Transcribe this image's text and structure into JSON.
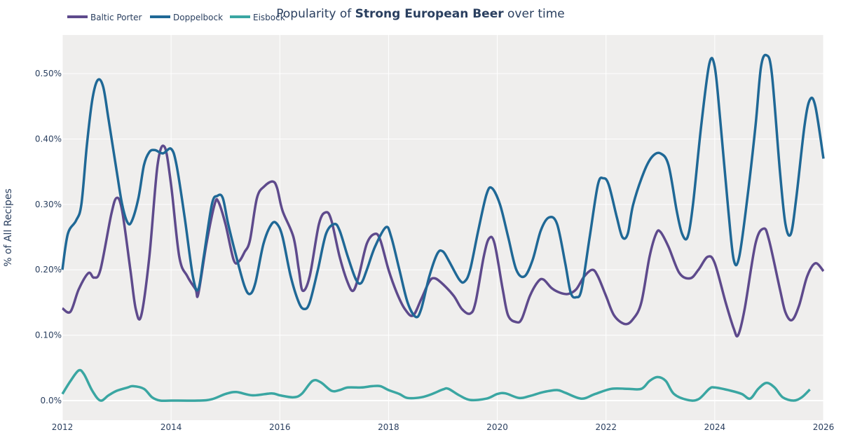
{
  "chart_data": {
    "type": "line",
    "title_prefix": "Popularity of ",
    "title_bold": "Strong European Beer",
    "title_suffix": " over time",
    "xlabel": "",
    "ylabel": "% of All Recipes",
    "xlim": [
      2012,
      2026
    ],
    "ylim": [
      -0.03,
      0.559
    ],
    "x_ticks": [
      "2012",
      "2014",
      "2016",
      "2018",
      "2020",
      "2022",
      "2024",
      "2026"
    ],
    "y_ticks": [
      {
        "v": 0,
        "label": "0.0%"
      },
      {
        "v": 0.1,
        "label": "0.10%"
      },
      {
        "v": 0.2,
        "label": "0.20%"
      },
      {
        "v": 0.3,
        "label": "0.30%"
      },
      {
        "v": 0.4,
        "label": "0.40%"
      },
      {
        "v": 0.5,
        "label": "0.50%"
      }
    ],
    "grid": true,
    "legend_placement": "top-left",
    "plot_background": "#efeeed",
    "series": [
      {
        "name": "Baltic Porter",
        "color": "#5e4a8c",
        "points": [
          [
            2012.0,
            0.141
          ],
          [
            2012.15,
            0.136
          ],
          [
            2012.3,
            0.17
          ],
          [
            2012.48,
            0.195
          ],
          [
            2012.58,
            0.188
          ],
          [
            2012.7,
            0.2
          ],
          [
            2012.9,
            0.285
          ],
          [
            2013.0,
            0.31
          ],
          [
            2013.1,
            0.29
          ],
          [
            2013.25,
            0.2
          ],
          [
            2013.35,
            0.14
          ],
          [
            2013.45,
            0.13
          ],
          [
            2013.6,
            0.22
          ],
          [
            2013.75,
            0.36
          ],
          [
            2013.88,
            0.388
          ],
          [
            2014.0,
            0.33
          ],
          [
            2014.15,
            0.22
          ],
          [
            2014.3,
            0.19
          ],
          [
            2014.45,
            0.17
          ],
          [
            2014.5,
            0.163
          ],
          [
            2014.65,
            0.24
          ],
          [
            2014.8,
            0.3
          ],
          [
            2014.87,
            0.304
          ],
          [
            2015.0,
            0.27
          ],
          [
            2015.15,
            0.215
          ],
          [
            2015.25,
            0.213
          ],
          [
            2015.35,
            0.227
          ],
          [
            2015.45,
            0.245
          ],
          [
            2015.58,
            0.31
          ],
          [
            2015.72,
            0.328
          ],
          [
            2015.87,
            0.335
          ],
          [
            2015.95,
            0.325
          ],
          [
            2016.05,
            0.29
          ],
          [
            2016.25,
            0.25
          ],
          [
            2016.35,
            0.2
          ],
          [
            2016.42,
            0.168
          ],
          [
            2016.55,
            0.19
          ],
          [
            2016.72,
            0.27
          ],
          [
            2016.85,
            0.288
          ],
          [
            2016.95,
            0.275
          ],
          [
            2017.1,
            0.22
          ],
          [
            2017.25,
            0.18
          ],
          [
            2017.35,
            0.168
          ],
          [
            2017.45,
            0.19
          ],
          [
            2017.6,
            0.24
          ],
          [
            2017.75,
            0.255
          ],
          [
            2017.85,
            0.245
          ],
          [
            2018.0,
            0.2
          ],
          [
            2018.15,
            0.165
          ],
          [
            2018.3,
            0.14
          ],
          [
            2018.45,
            0.13
          ],
          [
            2018.6,
            0.155
          ],
          [
            2018.75,
            0.182
          ],
          [
            2018.85,
            0.187
          ],
          [
            2019.0,
            0.178
          ],
          [
            2019.2,
            0.16
          ],
          [
            2019.35,
            0.14
          ],
          [
            2019.5,
            0.133
          ],
          [
            2019.6,
            0.15
          ],
          [
            2019.75,
            0.22
          ],
          [
            2019.85,
            0.248
          ],
          [
            2019.95,
            0.24
          ],
          [
            2020.1,
            0.17
          ],
          [
            2020.2,
            0.13
          ],
          [
            2020.35,
            0.12
          ],
          [
            2020.45,
            0.125
          ],
          [
            2020.6,
            0.16
          ],
          [
            2020.75,
            0.182
          ],
          [
            2020.85,
            0.185
          ],
          [
            2021.0,
            0.172
          ],
          [
            2021.15,
            0.165
          ],
          [
            2021.3,
            0.163
          ],
          [
            2021.45,
            0.17
          ],
          [
            2021.6,
            0.19
          ],
          [
            2021.75,
            0.2
          ],
          [
            2021.85,
            0.19
          ],
          [
            2022.0,
            0.16
          ],
          [
            2022.15,
            0.13
          ],
          [
            2022.35,
            0.117
          ],
          [
            2022.5,
            0.125
          ],
          [
            2022.65,
            0.15
          ],
          [
            2022.8,
            0.22
          ],
          [
            2022.92,
            0.255
          ],
          [
            2023.0,
            0.258
          ],
          [
            2023.15,
            0.235
          ],
          [
            2023.35,
            0.195
          ],
          [
            2023.55,
            0.187
          ],
          [
            2023.7,
            0.2
          ],
          [
            2023.87,
            0.22
          ],
          [
            2024.0,
            0.21
          ],
          [
            2024.2,
            0.15
          ],
          [
            2024.35,
            0.11
          ],
          [
            2024.43,
            0.1
          ],
          [
            2024.55,
            0.14
          ],
          [
            2024.75,
            0.24
          ],
          [
            2024.9,
            0.263
          ],
          [
            2025.0,
            0.245
          ],
          [
            2025.2,
            0.17
          ],
          [
            2025.3,
            0.135
          ],
          [
            2025.42,
            0.123
          ],
          [
            2025.55,
            0.145
          ],
          [
            2025.7,
            0.19
          ],
          [
            2025.85,
            0.21
          ],
          [
            2026.0,
            0.198
          ]
        ]
      },
      {
        "name": "Doppelbock",
        "color": "#1f6896",
        "points": [
          [
            2012.0,
            0.2
          ],
          [
            2012.1,
            0.255
          ],
          [
            2012.25,
            0.275
          ],
          [
            2012.35,
            0.3
          ],
          [
            2012.45,
            0.39
          ],
          [
            2012.55,
            0.46
          ],
          [
            2012.65,
            0.49
          ],
          [
            2012.75,
            0.48
          ],
          [
            2012.85,
            0.43
          ],
          [
            2013.0,
            0.35
          ],
          [
            2013.1,
            0.3
          ],
          [
            2013.2,
            0.272
          ],
          [
            2013.28,
            0.275
          ],
          [
            2013.4,
            0.31
          ],
          [
            2013.5,
            0.36
          ],
          [
            2013.6,
            0.38
          ],
          [
            2013.7,
            0.383
          ],
          [
            2013.85,
            0.378
          ],
          [
            2014.0,
            0.385
          ],
          [
            2014.1,
            0.36
          ],
          [
            2014.25,
            0.28
          ],
          [
            2014.4,
            0.19
          ],
          [
            2014.5,
            0.17
          ],
          [
            2014.6,
            0.22
          ],
          [
            2014.75,
            0.3
          ],
          [
            2014.85,
            0.313
          ],
          [
            2014.95,
            0.31
          ],
          [
            2015.05,
            0.27
          ],
          [
            2015.2,
            0.22
          ],
          [
            2015.35,
            0.175
          ],
          [
            2015.45,
            0.163
          ],
          [
            2015.55,
            0.18
          ],
          [
            2015.7,
            0.24
          ],
          [
            2015.85,
            0.27
          ],
          [
            2015.95,
            0.27
          ],
          [
            2016.05,
            0.25
          ],
          [
            2016.2,
            0.19
          ],
          [
            2016.35,
            0.15
          ],
          [
            2016.45,
            0.14
          ],
          [
            2016.55,
            0.15
          ],
          [
            2016.7,
            0.2
          ],
          [
            2016.85,
            0.255
          ],
          [
            2017.0,
            0.27
          ],
          [
            2017.1,
            0.26
          ],
          [
            2017.25,
            0.22
          ],
          [
            2017.4,
            0.185
          ],
          [
            2017.5,
            0.18
          ],
          [
            2017.6,
            0.2
          ],
          [
            2017.75,
            0.235
          ],
          [
            2017.95,
            0.265
          ],
          [
            2018.05,
            0.25
          ],
          [
            2018.2,
            0.2
          ],
          [
            2018.35,
            0.15
          ],
          [
            2018.5,
            0.128
          ],
          [
            2018.6,
            0.14
          ],
          [
            2018.75,
            0.19
          ],
          [
            2018.9,
            0.225
          ],
          [
            2019.0,
            0.228
          ],
          [
            2019.1,
            0.215
          ],
          [
            2019.3,
            0.185
          ],
          [
            2019.4,
            0.182
          ],
          [
            2019.5,
            0.2
          ],
          [
            2019.65,
            0.26
          ],
          [
            2019.8,
            0.315
          ],
          [
            2019.9,
            0.325
          ],
          [
            2020.05,
            0.3
          ],
          [
            2020.2,
            0.25
          ],
          [
            2020.35,
            0.2
          ],
          [
            2020.5,
            0.19
          ],
          [
            2020.65,
            0.215
          ],
          [
            2020.8,
            0.26
          ],
          [
            2020.95,
            0.28
          ],
          [
            2021.1,
            0.27
          ],
          [
            2021.25,
            0.21
          ],
          [
            2021.35,
            0.165
          ],
          [
            2021.45,
            0.158
          ],
          [
            2021.55,
            0.17
          ],
          [
            2021.7,
            0.25
          ],
          [
            2021.85,
            0.33
          ],
          [
            2021.95,
            0.34
          ],
          [
            2022.05,
            0.33
          ],
          [
            2022.2,
            0.28
          ],
          [
            2022.3,
            0.25
          ],
          [
            2022.4,
            0.255
          ],
          [
            2022.5,
            0.3
          ],
          [
            2022.7,
            0.35
          ],
          [
            2022.85,
            0.373
          ],
          [
            2023.0,
            0.378
          ],
          [
            2023.15,
            0.36
          ],
          [
            2023.3,
            0.29
          ],
          [
            2023.4,
            0.255
          ],
          [
            2023.5,
            0.25
          ],
          [
            2023.6,
            0.3
          ],
          [
            2023.75,
            0.42
          ],
          [
            2023.9,
            0.515
          ],
          [
            2024.0,
            0.51
          ],
          [
            2024.1,
            0.43
          ],
          [
            2024.25,
            0.29
          ],
          [
            2024.35,
            0.215
          ],
          [
            2024.45,
            0.22
          ],
          [
            2024.6,
            0.31
          ],
          [
            2024.75,
            0.42
          ],
          [
            2024.85,
            0.51
          ],
          [
            2024.95,
            0.528
          ],
          [
            2025.05,
            0.5
          ],
          [
            2025.2,
            0.35
          ],
          [
            2025.3,
            0.27
          ],
          [
            2025.4,
            0.255
          ],
          [
            2025.5,
            0.31
          ],
          [
            2025.65,
            0.42
          ],
          [
            2025.75,
            0.46
          ],
          [
            2025.85,
            0.45
          ],
          [
            2026.0,
            0.37
          ]
        ]
      },
      {
        "name": "Eisbock",
        "color": "#3aa6a2",
        "points": [
          [
            2012.0,
            0.01
          ],
          [
            2012.15,
            0.03
          ],
          [
            2012.3,
            0.046
          ],
          [
            2012.4,
            0.04
          ],
          [
            2012.55,
            0.015
          ],
          [
            2012.7,
            0.0
          ],
          [
            2012.85,
            0.008
          ],
          [
            2013.0,
            0.015
          ],
          [
            2013.2,
            0.02
          ],
          [
            2013.3,
            0.022
          ],
          [
            2013.5,
            0.018
          ],
          [
            2013.65,
            0.005
          ],
          [
            2013.8,
            0.0
          ],
          [
            2014.0,
            0.0
          ],
          [
            2014.5,
            0.0
          ],
          [
            2014.75,
            0.002
          ],
          [
            2015.0,
            0.01
          ],
          [
            2015.2,
            0.013
          ],
          [
            2015.5,
            0.008
          ],
          [
            2015.85,
            0.011
          ],
          [
            2016.0,
            0.008
          ],
          [
            2016.25,
            0.005
          ],
          [
            2016.4,
            0.01
          ],
          [
            2016.6,
            0.03
          ],
          [
            2016.75,
            0.028
          ],
          [
            2016.95,
            0.015
          ],
          [
            2017.1,
            0.016
          ],
          [
            2017.25,
            0.02
          ],
          [
            2017.5,
            0.02
          ],
          [
            2017.7,
            0.022
          ],
          [
            2017.85,
            0.022
          ],
          [
            2018.0,
            0.016
          ],
          [
            2018.2,
            0.01
          ],
          [
            2018.35,
            0.004
          ],
          [
            2018.6,
            0.005
          ],
          [
            2018.8,
            0.01
          ],
          [
            2019.0,
            0.017
          ],
          [
            2019.1,
            0.018
          ],
          [
            2019.3,
            0.008
          ],
          [
            2019.5,
            0.001
          ],
          [
            2019.8,
            0.003
          ],
          [
            2020.0,
            0.01
          ],
          [
            2020.15,
            0.011
          ],
          [
            2020.4,
            0.004
          ],
          [
            2020.6,
            0.007
          ],
          [
            2020.85,
            0.013
          ],
          [
            2021.1,
            0.016
          ],
          [
            2021.25,
            0.012
          ],
          [
            2021.55,
            0.003
          ],
          [
            2021.8,
            0.01
          ],
          [
            2022.1,
            0.018
          ],
          [
            2022.4,
            0.018
          ],
          [
            2022.65,
            0.018
          ],
          [
            2022.8,
            0.03
          ],
          [
            2022.95,
            0.036
          ],
          [
            2023.1,
            0.03
          ],
          [
            2023.25,
            0.01
          ],
          [
            2023.5,
            0.001
          ],
          [
            2023.7,
            0.002
          ],
          [
            2023.9,
            0.018
          ],
          [
            2024.0,
            0.02
          ],
          [
            2024.3,
            0.015
          ],
          [
            2024.5,
            0.01
          ],
          [
            2024.65,
            0.003
          ],
          [
            2024.8,
            0.018
          ],
          [
            2024.95,
            0.027
          ],
          [
            2025.1,
            0.02
          ],
          [
            2025.25,
            0.005
          ],
          [
            2025.45,
            0.0
          ],
          [
            2025.6,
            0.005
          ],
          [
            2025.75,
            0.017
          ]
        ]
      }
    ]
  }
}
